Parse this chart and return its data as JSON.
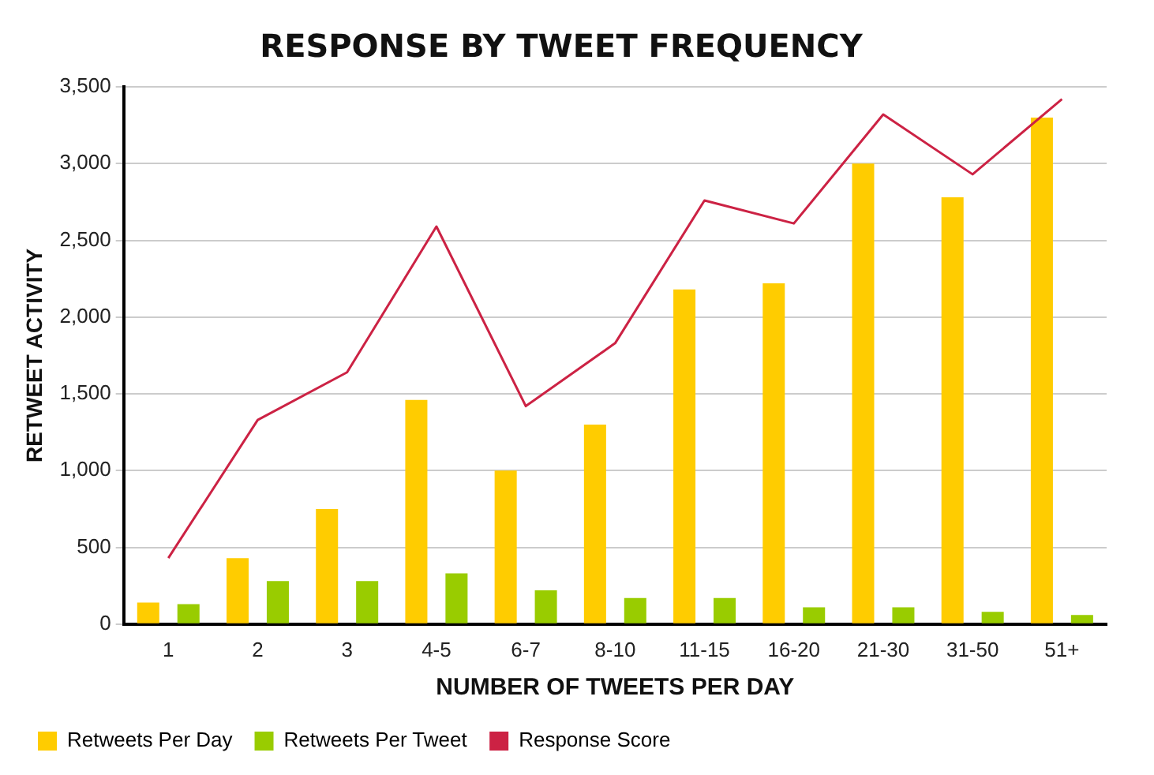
{
  "chart_data": {
    "type": "bar",
    "title": "RESPONSE BY TWEET FREQUENCY",
    "xlabel": "NUMBER OF TWEETS PER DAY",
    "ylabel": "RETWEET ACTIVITY",
    "categories": [
      "1",
      "2",
      "3",
      "4-5",
      "6-7",
      "8-10",
      "11-15",
      "16-20",
      "21-30",
      "31-50",
      "51+"
    ],
    "series": [
      {
        "name": "Retweets Per Day",
        "color": "#ffcc00",
        "values": [
          140,
          430,
          750,
          1460,
          1000,
          1300,
          2180,
          2220,
          3000,
          2780,
          3300
        ]
      },
      {
        "name": "Retweets Per Tweet",
        "color": "#99cc00",
        "values": [
          130,
          280,
          280,
          330,
          220,
          170,
          170,
          110,
          110,
          80,
          60
        ]
      },
      {
        "name": "Response Score",
        "type": "line",
        "color": "#cc2244",
        "values": [
          430,
          1330,
          1640,
          2590,
          1420,
          1830,
          2760,
          2610,
          3320,
          2930,
          3420
        ]
      }
    ],
    "ylim": [
      0,
      3500
    ],
    "yticks": [
      {
        "value": 0,
        "label": "0"
      },
      {
        "value": 500,
        "label": "500"
      },
      {
        "value": 1000,
        "label": "1,000"
      },
      {
        "value": 1500,
        "label": "1,500"
      },
      {
        "value": 2000,
        "label": "2,000"
      },
      {
        "value": 2500,
        "label": "2,500"
      },
      {
        "value": 3000,
        "label": "3,000"
      },
      {
        "value": 3500,
        "label": "3,500"
      }
    ],
    "grid": "y",
    "legend": "bottom left",
    "marker": "none",
    "line_style": "solid"
  }
}
